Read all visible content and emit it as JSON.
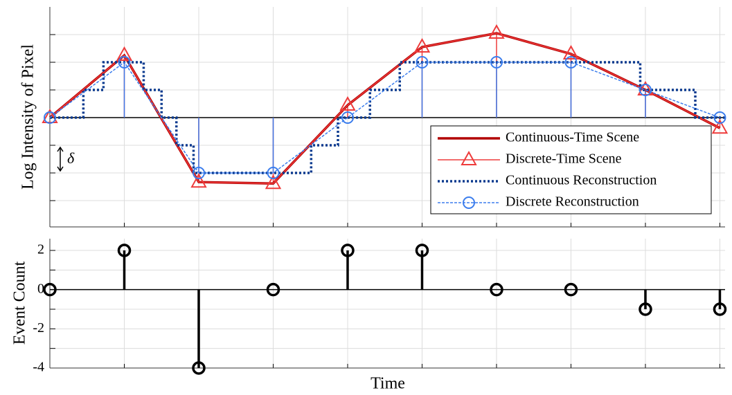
{
  "chart_data": [
    {
      "type": "line",
      "ylabel": "Log Intensity of Pixel",
      "annotation": "δ",
      "x": [
        0,
        1,
        2,
        3,
        4,
        5,
        6,
        7,
        8,
        9
      ],
      "xlim": [
        0,
        9.07
      ],
      "xticks": [
        0,
        1,
        2,
        3,
        4,
        5,
        6,
        7,
        8,
        9
      ],
      "ylim": [
        -3.95,
        4
      ],
      "yticks": [
        -3,
        -2,
        -1,
        0,
        1,
        2,
        3
      ],
      "grid": true,
      "legend": "right",
      "series": [
        {
          "name": "Continuous-Time Scene",
          "color": "#b20000",
          "style": "solid",
          "width": 3.5,
          "values": [
            0,
            2.25,
            -2.33,
            -2.38,
            0.45,
            2.55,
            3.05,
            2.3,
            1.0,
            -0.38
          ]
        },
        {
          "name": "Discrete-Time Scene",
          "color": "#ee3b3b",
          "style": "solid",
          "width": 1.5,
          "marker": "triangle",
          "stem": true,
          "values": [
            0,
            2.25,
            -2.33,
            -2.38,
            0.45,
            2.55,
            3.05,
            2.3,
            1.0,
            -0.38
          ]
        },
        {
          "name": "Continuous Reconstruction",
          "color": "#0b3a8f",
          "style": "dotted",
          "width": 3.5,
          "x": [
            0,
            0.45,
            0.45,
            0.72,
            0.72,
            1.26,
            1.26,
            1.5,
            1.5,
            1.7,
            1.7,
            1.93,
            1.93,
            3.51,
            3.51,
            3.87,
            3.87,
            4.3,
            4.3,
            4.7,
            4.7,
            7.93,
            7.93,
            8.67,
            8.67,
            9.07
          ],
          "values": [
            0,
            0,
            1,
            1,
            2,
            2,
            1,
            1,
            0,
            0,
            -1,
            -1,
            -2,
            -2,
            -1,
            -1,
            0,
            0,
            1,
            1,
            2,
            2,
            1,
            1,
            0,
            0
          ]
        },
        {
          "name": "Discrete Reconstruction",
          "color": "#3b7ded",
          "style": "dashed",
          "width": 1.5,
          "marker": "circle",
          "stem": true,
          "values": [
            0,
            2,
            -2,
            -2,
            0,
            2,
            2,
            2,
            1,
            0
          ]
        }
      ]
    },
    {
      "type": "stem",
      "ylabel": "Event Count",
      "xlabel": "Time",
      "x": [
        0,
        1,
        2,
        3,
        4,
        5,
        6,
        7,
        8,
        9
      ],
      "xlim": [
        0,
        9.07
      ],
      "xticks": [
        0,
        1,
        2,
        3,
        4,
        5,
        6,
        7,
        8,
        9
      ],
      "ylim": [
        -4,
        2.6
      ],
      "yticks": [
        -4,
        -2,
        0,
        2
      ],
      "minor_yticks": [
        -3,
        -1,
        1
      ],
      "grid": true,
      "color": "#000000",
      "values": [
        0,
        2,
        -4,
        0,
        2,
        2,
        0,
        0,
        -1,
        -1
      ]
    }
  ]
}
